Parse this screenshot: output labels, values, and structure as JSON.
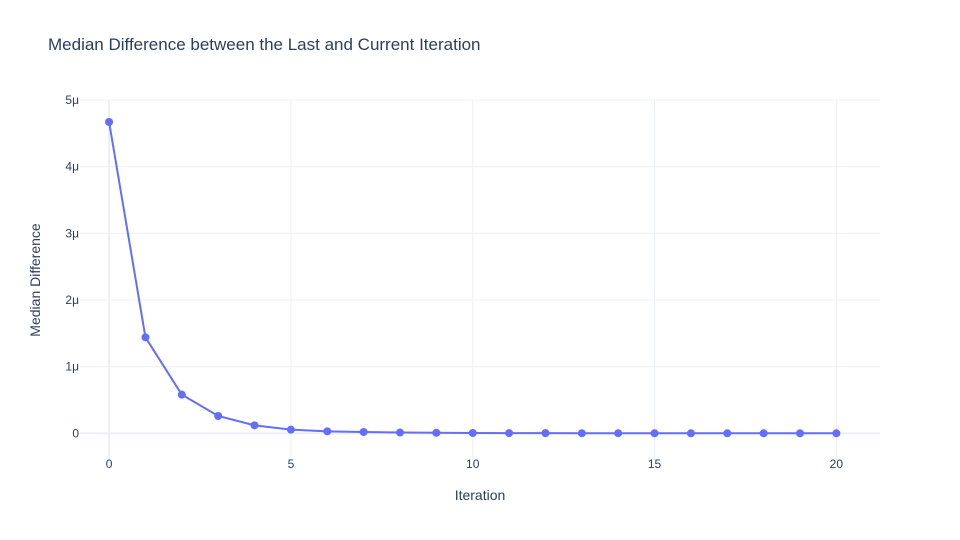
{
  "chart_data": {
    "type": "line",
    "title": "Median Difference between the Last and Current Iteration",
    "xlabel": "Iteration",
    "ylabel": "Median Difference",
    "x": [
      0,
      1,
      2,
      3,
      4,
      5,
      6,
      7,
      8,
      9,
      10,
      11,
      12,
      13,
      14,
      15,
      16,
      17,
      18,
      19,
      20
    ],
    "series": [
      {
        "values": [
          4.67e-06,
          1.44e-06,
          5.8e-07,
          2.6e-07,
          1.2e-07,
          5.5e-08,
          3e-08,
          2e-08,
          1.2e-08,
          8e-09,
          5e-09,
          4e-09,
          3e-09,
          2e-09,
          1.5e-09,
          1e-09,
          1e-09,
          1e-09,
          1e-09,
          1e-09,
          1e-09
        ],
        "color": "#636efa",
        "mode": "lines+markers"
      }
    ],
    "xlim": [
      -0.8,
      21.2
    ],
    "ylim": [
      -4e-07,
      5e-06
    ],
    "xticks": [
      0,
      5,
      10,
      15,
      20
    ],
    "xtick_labels": [
      "0",
      "5",
      "10",
      "15",
      "20"
    ],
    "yticks": [
      0,
      1e-06,
      2e-06,
      3e-06,
      4e-06,
      5e-06
    ],
    "ytick_labels": [
      "0",
      "1μ",
      "2μ",
      "3μ",
      "4μ",
      "5μ"
    ],
    "grid": true,
    "colors": {
      "grid": "#ebf0f8",
      "text": "#2a3f5f",
      "series": "#636efa"
    }
  }
}
